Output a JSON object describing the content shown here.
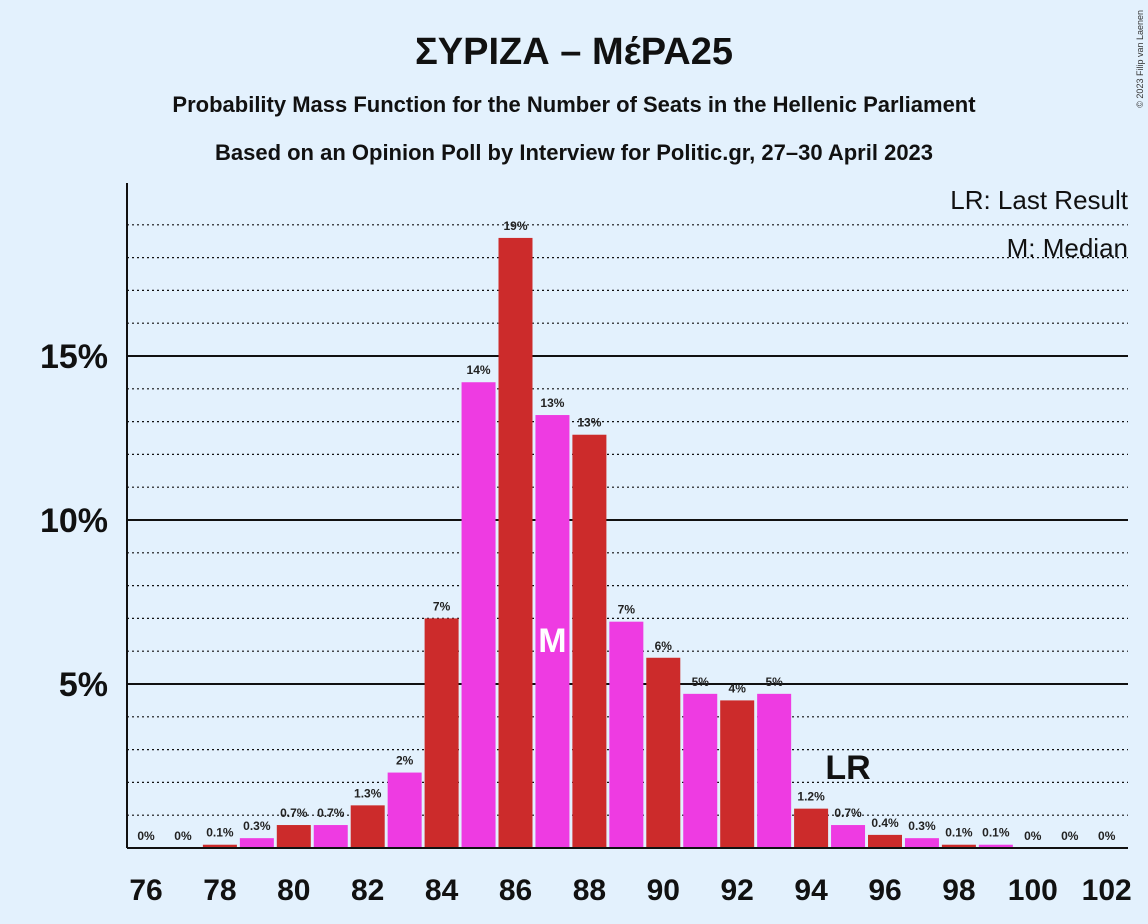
{
  "header": {
    "title": "ΣΥΡΙΖΑ – ΜέΡΑ25",
    "subtitle1": "Probability Mass Function for the Number of Seats in the Hellenic Parliament",
    "subtitle2": "Based on an Opinion Poll by Interview for Politic.gr, 27–30 April 2023",
    "copyright": "© 2023 Filip van Laenen"
  },
  "legend": {
    "last_result": "LR: Last Result",
    "median": "M: Median"
  },
  "colors": {
    "background": "#e3f1fd",
    "bar_red": "#cc2b2b",
    "bar_magenta": "#ee3be2",
    "axis": "#111111"
  },
  "chart_data": {
    "type": "bar",
    "x": [
      76,
      77,
      78,
      79,
      80,
      81,
      82,
      83,
      84,
      85,
      86,
      87,
      88,
      89,
      90,
      91,
      92,
      93,
      94,
      95,
      96,
      97,
      98,
      99,
      100,
      101,
      102
    ],
    "values": [
      0,
      0,
      0.1,
      0.3,
      0.7,
      0.7,
      1.3,
      2.3,
      7.0,
      14.2,
      18.6,
      13.2,
      12.6,
      6.9,
      5.8,
      4.7,
      4.5,
      4.7,
      1.2,
      0.7,
      0.4,
      0.3,
      0.1,
      0.1,
      0,
      0,
      0
    ],
    "data_labels": [
      "0%",
      "0%",
      "0.1%",
      "0.3%",
      "0.7%",
      "0.7%",
      "1.3%",
      "2%",
      "7%",
      "14%",
      "19%",
      "13%",
      "13%",
      "7%",
      "6%",
      "5%",
      "4%",
      "5%",
      "1.2%",
      "0.7%",
      "0.4%",
      "0.3%",
      "0.1%",
      "0.1%",
      "0%",
      "0%",
      "0%"
    ],
    "x_tick_labels": [
      "76",
      "78",
      "80",
      "82",
      "84",
      "86",
      "88",
      "90",
      "92",
      "94",
      "96",
      "98",
      "100",
      "102"
    ],
    "y_tick_labels": [
      "5%",
      "10%",
      "15%"
    ],
    "y_ticks": [
      5,
      10,
      15
    ],
    "ylim": [
      0,
      20
    ],
    "median": 87,
    "median_label": "M",
    "last_result": 95,
    "last_result_label": "LR",
    "grid": true,
    "legend_position": "top-right"
  }
}
